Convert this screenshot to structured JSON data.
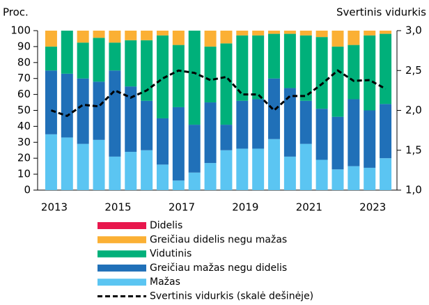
{
  "chart_data": {
    "type": "stacked_bar_line",
    "y_label": "Proc.",
    "y2_label": "Svertinis vidurkis",
    "categories": [
      "2013",
      null,
      null,
      null,
      "2015",
      null,
      null,
      null,
      "2017",
      null,
      null,
      null,
      "2019",
      null,
      null,
      null,
      "2021",
      null,
      null,
      null,
      "2023",
      null
    ],
    "series": [
      {
        "name": "Didelis",
        "color": "#e8174d",
        "values": [
          0,
          0,
          0,
          0,
          0,
          0,
          0,
          0,
          0,
          0,
          0,
          0,
          0,
          0,
          0,
          0,
          0,
          0,
          0,
          0,
          0,
          0
        ]
      },
      {
        "name": "Greičiau didelis negu mažas",
        "color": "#fbb034",
        "values": [
          10,
          0,
          7.5,
          4.5,
          7.5,
          6,
          6,
          3,
          9,
          0,
          10,
          8,
          3,
          3,
          2,
          2,
          3,
          4,
          10,
          9,
          3,
          2
        ]
      },
      {
        "name": "Vidutinis",
        "color": "#00b07a",
        "values": [
          15,
          27,
          22.5,
          27.5,
          17.5,
          29,
          38,
          52,
          39,
          59,
          35,
          51,
          41,
          40,
          28,
          34,
          41,
          45,
          44,
          34,
          47,
          44
        ]
      },
      {
        "name": "Greičiau mažas negu didelis",
        "color": "#2070b8",
        "values": [
          40,
          40,
          41,
          36.5,
          54,
          41,
          31,
          29,
          46,
          30,
          38,
          16,
          30,
          31,
          38,
          43,
          27,
          32,
          33,
          42,
          36,
          34
        ]
      },
      {
        "name": "Mažas",
        "color": "#5bc5f2",
        "values": [
          35,
          33,
          29,
          31.5,
          21,
          24,
          25,
          16,
          6,
          11,
          17,
          25,
          26,
          26,
          32,
          21,
          29,
          19,
          13,
          15,
          14,
          20
        ]
      },
      {
        "name": "Svertinis vidurkis (skalė dešinėje)",
        "color": "#000000",
        "axis": "y2",
        "line": true,
        "values": [
          2.0,
          1.93,
          2.07,
          2.05,
          2.25,
          2.16,
          2.25,
          2.4,
          2.5,
          2.47,
          2.38,
          2.42,
          2.2,
          2.2,
          2.0,
          2.18,
          2.18,
          2.33,
          2.5,
          2.37,
          2.38,
          2.27
        ]
      }
    ],
    "ylim": [
      0,
      100
    ],
    "yticks": [
      0,
      10,
      20,
      30,
      40,
      50,
      60,
      70,
      80,
      90,
      100
    ],
    "y2lim": [
      1.0,
      3.0
    ],
    "y2ticks": [
      {
        "value": 1.0,
        "label": "1,0"
      },
      {
        "value": 1.5,
        "label": "1,5"
      },
      {
        "value": 2.0,
        "label": "2,0"
      },
      {
        "value": 2.5,
        "label": "2,5"
      },
      {
        "value": 3.0,
        "label": "3,0"
      }
    ]
  }
}
